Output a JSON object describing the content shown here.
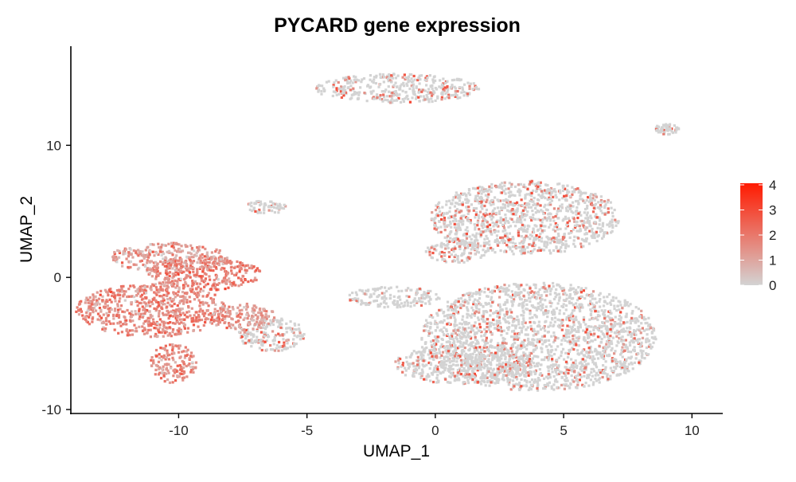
{
  "chart_data": {
    "type": "scatter",
    "title": "PYCARD gene expression",
    "xlabel": "UMAP_1",
    "ylabel": "UMAP_2",
    "xlim": [
      -14.2,
      11.2
    ],
    "ylim": [
      -10.3,
      17.5
    ],
    "xticks": [
      -10,
      -5,
      0,
      5,
      10
    ],
    "yticks": [
      -10,
      0,
      10
    ],
    "grid": false,
    "legend": {
      "placement": "right",
      "ticks": [
        0,
        1,
        2,
        3,
        4
      ],
      "range": [
        0,
        4
      ],
      "low_color": "#d3d3d3",
      "high_color": "#ff1a00"
    },
    "clusters": [
      {
        "center": [
          -11.0,
          -2.5
        ],
        "radius": [
          3.0,
          2.0
        ],
        "mean_expression": 1.6
      },
      {
        "center": [
          -9.0,
          0.3
        ],
        "radius": [
          2.2,
          1.3
        ],
        "mean_expression": 1.8
      },
      {
        "center": [
          -10.4,
          1.5
        ],
        "radius": [
          2.3,
          1.1
        ],
        "mean_expression": 1.2
      },
      {
        "center": [
          -10.2,
          -6.5
        ],
        "radius": [
          0.9,
          1.5
        ],
        "mean_expression": 1.4
      },
      {
        "center": [
          -6.4,
          -4.3
        ],
        "radius": [
          1.3,
          1.3
        ],
        "mean_expression": 0.4
      },
      {
        "center": [
          -7.5,
          -3.0
        ],
        "radius": [
          1.3,
          1.0
        ],
        "mean_expression": 1.2
      },
      {
        "center": [
          -1.5,
          14.3
        ],
        "radius": [
          3.2,
          1.1
        ],
        "mean_expression": 0.3
      },
      {
        "center": [
          9.0,
          11.2
        ],
        "radius": [
          0.5,
          0.4
        ],
        "mean_expression": 0.2
      },
      {
        "center": [
          -6.6,
          5.3
        ],
        "radius": [
          0.8,
          0.5
        ],
        "mean_expression": 0.2
      },
      {
        "center": [
          3.5,
          4.5
        ],
        "radius": [
          3.7,
          2.8
        ],
        "mean_expression": 0.35
      },
      {
        "center": [
          4.0,
          -4.5
        ],
        "radius": [
          4.6,
          4.1
        ],
        "mean_expression": 0.25
      },
      {
        "center": [
          1.2,
          -6.6
        ],
        "radius": [
          2.8,
          1.5
        ],
        "mean_expression": 0.25
      },
      {
        "center": [
          0.8,
          2.0
        ],
        "radius": [
          1.2,
          0.9
        ],
        "mean_expression": 0.5
      },
      {
        "center": [
          -1.6,
          -1.5
        ],
        "radius": [
          1.8,
          0.8
        ],
        "mean_expression": 0.15
      }
    ]
  }
}
